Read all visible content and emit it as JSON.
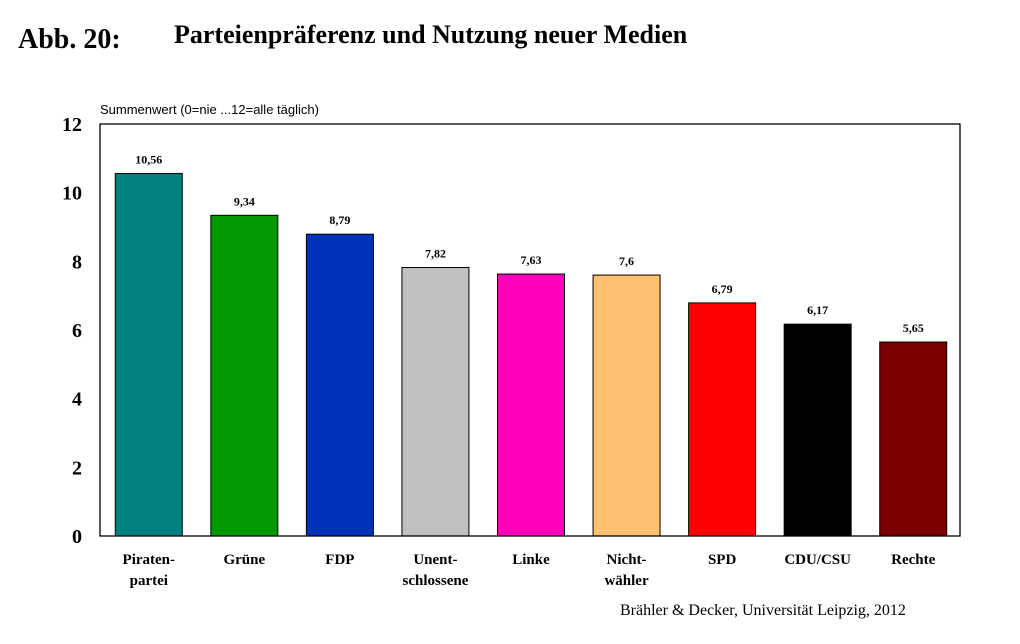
{
  "figure": {
    "label": "Abb. 20:",
    "title": "Parteienpräferenz und Nutzung neuer Medien",
    "source": "Brähler & Decker, Universität Leipzig, 2012"
  },
  "chart_data": {
    "type": "bar",
    "ylabel": "Summenwert (0=nie  ...12=alle täglich)",
    "ylim": [
      0,
      12
    ],
    "yticks": [
      "0",
      "2",
      "4",
      "6",
      "8",
      "10",
      "12"
    ],
    "categories": [
      [
        "Piraten-",
        "partei"
      ],
      [
        "Grüne"
      ],
      [
        "FDP"
      ],
      [
        "Unent-",
        "schlossene"
      ],
      [
        "Linke"
      ],
      [
        "Nicht-",
        "wähler"
      ],
      [
        "SPD"
      ],
      [
        "CDU/CSU"
      ],
      [
        "Rechte"
      ]
    ],
    "values": [
      10.56,
      9.34,
      8.79,
      7.82,
      7.63,
      7.6,
      6.79,
      6.17,
      5.65
    ],
    "value_labels": [
      "10,56",
      "9,34",
      "8,79",
      "7,82",
      "7,63",
      "7,6",
      "6,79",
      "6,17",
      "5,65"
    ],
    "colors": [
      "#008080",
      "#009900",
      "#0033bb",
      "#c0c0c0",
      "#ff00bb",
      "#ffc070",
      "#ff0000",
      "#000000",
      "#7a0000"
    ],
    "grid": false,
    "legend": "none"
  }
}
